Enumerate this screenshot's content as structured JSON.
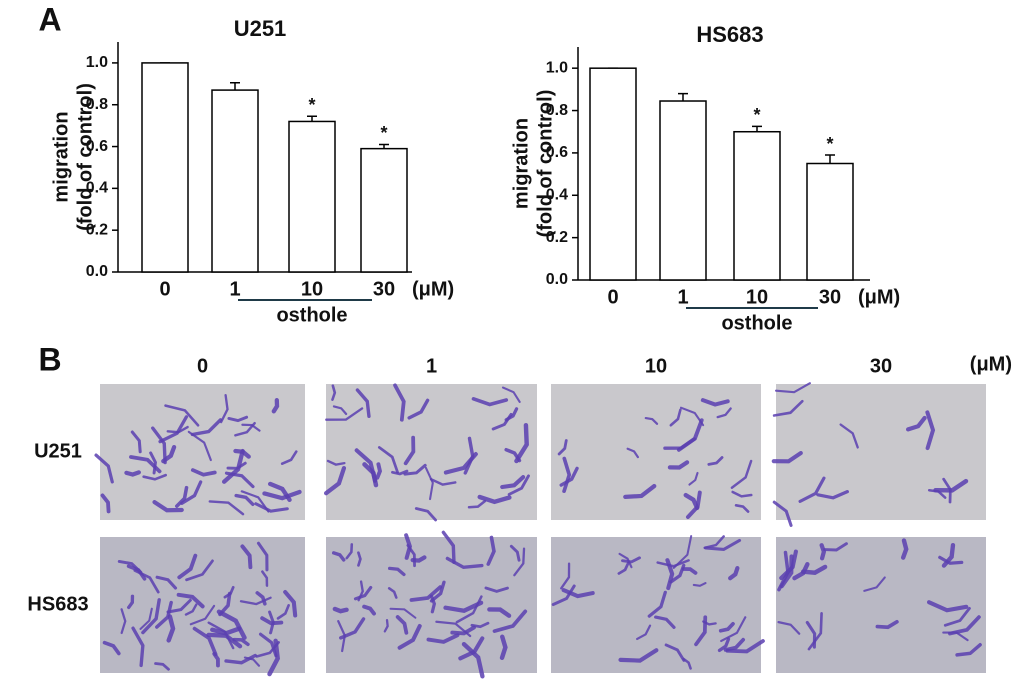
{
  "chart_data": [
    {
      "type": "bar",
      "title": "U251",
      "ylabel": [
        "migration",
        "(fold of control)"
      ],
      "categories": [
        "0",
        "1",
        "10",
        "30"
      ],
      "values": [
        1.0,
        0.87,
        0.72,
        0.59
      ],
      "errors": [
        0,
        0.035,
        0.025,
        0.02
      ],
      "significance": [
        null,
        null,
        "*",
        "*"
      ],
      "x_unit": "(μM)",
      "xlabel": "osthole",
      "color": "#ffffff",
      "edgecolor": "#000000",
      "ylim": [
        0,
        1.1
      ],
      "yticks": [
        {
          "value": 0,
          "label": "0.0"
        },
        {
          "value": 0.2,
          "label": "0.2"
        },
        {
          "value": 0.4,
          "label": "0.4"
        },
        {
          "value": 0.6,
          "label": "0.6"
        },
        {
          "value": 0.8,
          "label": "0.8"
        },
        {
          "value": 1,
          "label": "1.0"
        }
      ]
    },
    {
      "type": "bar",
      "title": "HS683",
      "ylabel": [
        "migration",
        "(fold of control)"
      ],
      "categories": [
        "0",
        "1",
        "10",
        "30"
      ],
      "values": [
        1.0,
        0.845,
        0.7,
        0.55
      ],
      "errors": [
        0,
        0.035,
        0.025,
        0.04
      ],
      "significance": [
        null,
        null,
        "*",
        "*"
      ],
      "x_unit": "(μM)",
      "xlabel": "osthole",
      "color": "#ffffff",
      "edgecolor": "#000000",
      "ylim": [
        0,
        1.1
      ],
      "yticks": [
        {
          "value": 0,
          "label": "0.0"
        },
        {
          "value": 0.2,
          "label": "0.2"
        },
        {
          "value": 0.4,
          "label": "0.4"
        },
        {
          "value": 0.6,
          "label": "0.6"
        },
        {
          "value": 0.8,
          "label": "0.8"
        },
        {
          "value": 1,
          "label": "1.0"
        }
      ]
    }
  ],
  "panel_a": {
    "label": "A"
  },
  "panel_b": {
    "label": "B",
    "columns": [
      "0",
      "1",
      "10",
      "30"
    ],
    "unit": "(μM)",
    "rows": [
      "U251",
      "HS683"
    ]
  }
}
